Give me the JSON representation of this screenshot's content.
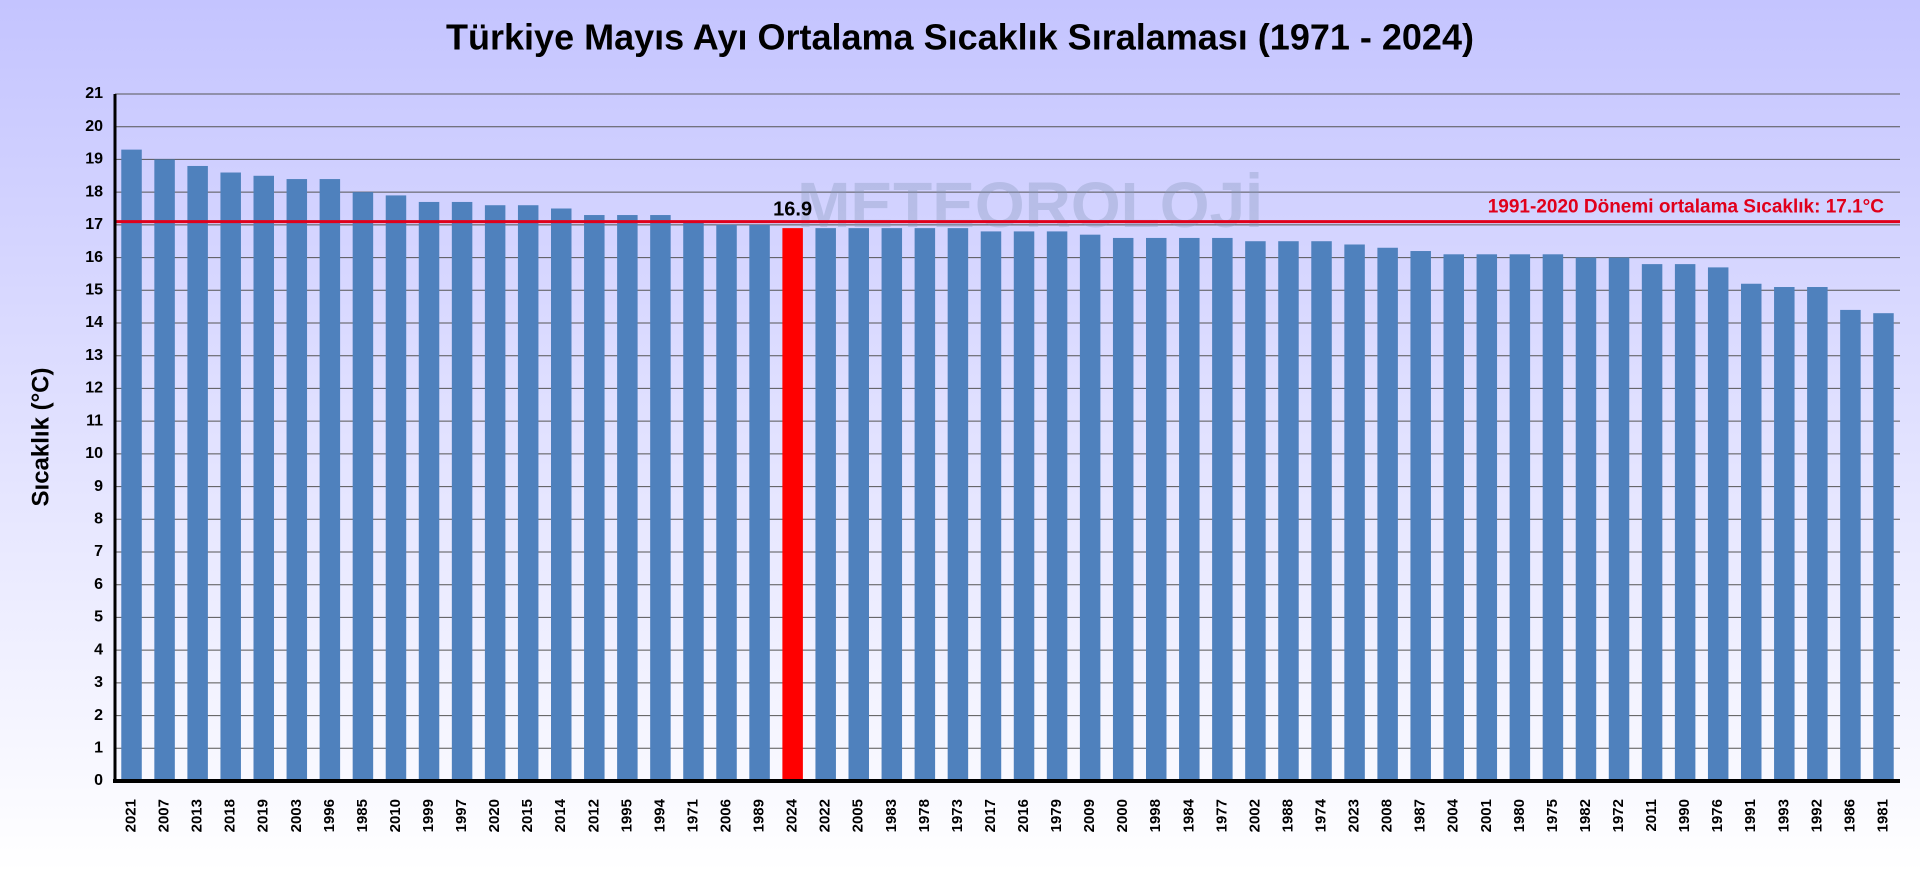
{
  "chart_data": {
    "type": "bar",
    "title": "Türkiye Mayıs Ayı Ortalama Sıcaklık Sıralaması (1971 - 2024)",
    "y_label": "Sıcaklık (°C)",
    "watermark": "METEOROLOJİ",
    "categories": [
      "2021",
      "2007",
      "2013",
      "2018",
      "2019",
      "2003",
      "1996",
      "1985",
      "2010",
      "1999",
      "1997",
      "2020",
      "2015",
      "2014",
      "2012",
      "1995",
      "1994",
      "1971",
      "2006",
      "1989",
      "2024",
      "2022",
      "2005",
      "1983",
      "1978",
      "1973",
      "2017",
      "2016",
      "1979",
      "2009",
      "2000",
      "1998",
      "1984",
      "1977",
      "2002",
      "1988",
      "1974",
      "2023",
      "2008",
      "1987",
      "2004",
      "2001",
      "1980",
      "1975",
      "1982",
      "1972",
      "2011",
      "1990",
      "1976",
      "1991",
      "1993",
      "1992",
      "1986",
      "1981"
    ],
    "values": [
      19.3,
      19.0,
      18.8,
      18.6,
      18.5,
      18.4,
      18.4,
      18.0,
      17.9,
      17.7,
      17.7,
      17.6,
      17.6,
      17.5,
      17.3,
      17.3,
      17.3,
      17.1,
      17.0,
      17.0,
      16.9,
      16.9,
      16.9,
      16.9,
      16.9,
      16.9,
      16.8,
      16.8,
      16.8,
      16.7,
      16.6,
      16.6,
      16.6,
      16.6,
      16.5,
      16.5,
      16.5,
      16.4,
      16.3,
      16.2,
      16.1,
      16.1,
      16.1,
      16.1,
      16.0,
      16.0,
      15.8,
      15.8,
      15.7,
      15.2,
      15.1,
      15.1,
      14.4,
      14.3
    ],
    "color": "#4f81bd",
    "highlight": {
      "category": "2024",
      "color": "#ff0000"
    },
    "reference_line": {
      "value": 17.1,
      "label": "1991-2020 Dönemi ortalama Sıcaklık: 17.1°C",
      "color": "#e0001b"
    },
    "ylim": [
      0,
      21
    ],
    "yticks": [
      0,
      1,
      2,
      3,
      4,
      5,
      6,
      7,
      8,
      9,
      10,
      11,
      12,
      13,
      14,
      15,
      16,
      17,
      18,
      19,
      20,
      21
    ],
    "grid": true
  }
}
